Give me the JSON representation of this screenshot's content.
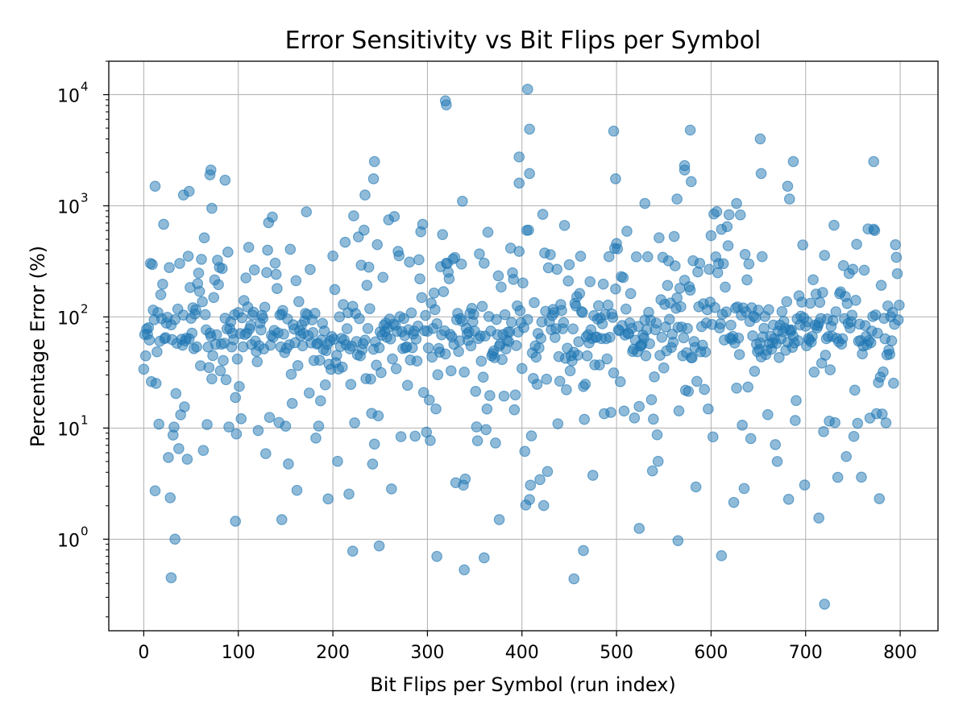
{
  "chart_data": {
    "type": "scatter",
    "title": "Error Sensitivity vs Bit Flips per Symbol",
    "xlabel": "Bit Flips per Symbol (run index)",
    "ylabel": "Percentage Error (%)",
    "xlim": [
      -37,
      840
    ],
    "ylim": [
      0.15,
      20000
    ],
    "yscale": "log",
    "grid": true,
    "x_ticks": [
      0,
      100,
      200,
      300,
      400,
      500,
      600,
      700,
      800
    ],
    "y_ticks": [
      {
        "value": 1,
        "base": "10",
        "exp": "0"
      },
      {
        "value": 10,
        "base": "10",
        "exp": "1"
      },
      {
        "value": 100,
        "base": "10",
        "exp": "2"
      },
      {
        "value": 1000,
        "base": "10",
        "exp": "3"
      },
      {
        "value": 10000,
        "base": "10",
        "exp": "4"
      }
    ],
    "point_color": "#1f77b4",
    "point_alpha": 0.5,
    "seed": 20240517,
    "num_points": 800,
    "highlight_points": [
      {
        "x": 406,
        "y": 11200
      },
      {
        "x": 319,
        "y": 8800
      },
      {
        "x": 320,
        "y": 8100
      },
      {
        "x": 408,
        "y": 4900
      },
      {
        "x": 497,
        "y": 4700
      },
      {
        "x": 578,
        "y": 4800
      },
      {
        "x": 652,
        "y": 4000
      },
      {
        "x": 244,
        "y": 2500
      },
      {
        "x": 772,
        "y": 2500
      },
      {
        "x": 687,
        "y": 2500
      },
      {
        "x": 71,
        "y": 2100
      },
      {
        "x": 70,
        "y": 1900
      },
      {
        "x": 653,
        "y": 1950
      },
      {
        "x": 408,
        "y": 1950
      },
      {
        "x": 572,
        "y": 2300
      },
      {
        "x": 572,
        "y": 2100
      },
      {
        "x": 397,
        "y": 2750
      },
      {
        "x": 397,
        "y": 1600
      },
      {
        "x": 12,
        "y": 1500
      },
      {
        "x": 86,
        "y": 1700
      },
      {
        "x": 499,
        "y": 1750
      },
      {
        "x": 579,
        "y": 1650
      },
      {
        "x": 681,
        "y": 1500
      },
      {
        "x": 243,
        "y": 1750
      },
      {
        "x": 42,
        "y": 1250
      },
      {
        "x": 48,
        "y": 1350
      },
      {
        "x": 234,
        "y": 1250
      },
      {
        "x": 337,
        "y": 1100
      },
      {
        "x": 564,
        "y": 1150
      },
      {
        "x": 530,
        "y": 1050
      },
      {
        "x": 683,
        "y": 1150
      },
      {
        "x": 627,
        "y": 1050
      },
      {
        "x": 72,
        "y": 950
      },
      {
        "x": 29,
        "y": 0.45
      },
      {
        "x": 455,
        "y": 0.44
      },
      {
        "x": 720,
        "y": 0.26
      },
      {
        "x": 339,
        "y": 0.53
      },
      {
        "x": 33,
        "y": 1.0
      },
      {
        "x": 97,
        "y": 1.45
      },
      {
        "x": 146,
        "y": 1.5
      },
      {
        "x": 376,
        "y": 1.5
      },
      {
        "x": 524,
        "y": 1.25
      },
      {
        "x": 565,
        "y": 0.97
      },
      {
        "x": 714,
        "y": 1.55
      },
      {
        "x": 221,
        "y": 0.78
      },
      {
        "x": 249,
        "y": 0.87
      },
      {
        "x": 310,
        "y": 0.7
      },
      {
        "x": 360,
        "y": 0.68
      },
      {
        "x": 465,
        "y": 0.79
      },
      {
        "x": 611,
        "y": 0.71
      }
    ]
  }
}
